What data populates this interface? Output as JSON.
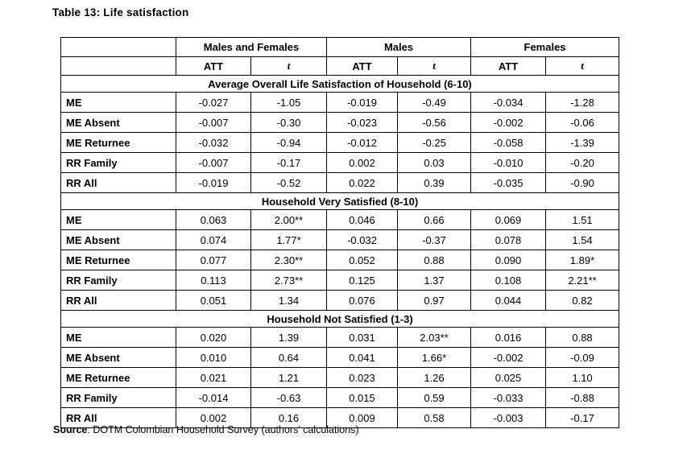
{
  "title": "Table 13: Life satisfaction",
  "source": {
    "label": "Source",
    "text": ": DOTM Colombian Household Survey (authors’ calculations)"
  },
  "table": {
    "col_groups": [
      "Males and Females",
      "Males",
      "Females"
    ],
    "sub_headers": [
      "ATT",
      "t"
    ],
    "sections": [
      {
        "header": "Average Overall Life Satisfaction of Household (6-10)",
        "rows": [
          {
            "label": "ME",
            "values": [
              "-0.027",
              "-1.05",
              "-0.019",
              "-0.49",
              "-0.034",
              "-1.28"
            ]
          },
          {
            "label": "ME Absent",
            "values": [
              "-0.007",
              "-0.30",
              "-0.023",
              "-0.56",
              "-0.002",
              "-0.06"
            ]
          },
          {
            "label": "ME Returnee",
            "values": [
              "-0.032",
              "-0.94",
              "-0.012",
              "-0.25",
              "-0.058",
              "-1.39"
            ]
          },
          {
            "label": "RR Family",
            "values": [
              "-0.007",
              "-0.17",
              "0.002",
              "0.03",
              "-0.010",
              "-0.20"
            ]
          },
          {
            "label": "RR All",
            "values": [
              "-0.019",
              "-0.52",
              "0.022",
              "0.39",
              "-0.035",
              "-0.90"
            ]
          }
        ]
      },
      {
        "header": "Household Very Satisfied (8-10)",
        "rows": [
          {
            "label": "ME",
            "values": [
              "0.063",
              "2.00**",
              "0.046",
              "0.66",
              "0.069",
              "1.51"
            ]
          },
          {
            "label": "ME Absent",
            "values": [
              "0.074",
              "1.77*",
              "-0.032",
              "-0.37",
              "0.078",
              "1.54"
            ]
          },
          {
            "label": "ME Returnee",
            "values": [
              "0.077",
              "2.30**",
              "0.052",
              "0.88",
              "0.090",
              "1.89*"
            ]
          },
          {
            "label": "RR Family",
            "values": [
              "0.113",
              "2.73**",
              "0.125",
              "1.37",
              "0.108",
              "2.21**"
            ]
          },
          {
            "label": "RR All",
            "values": [
              "0.051",
              "1.34",
              "0.076",
              "0.97",
              "0.044",
              "0.82"
            ]
          }
        ]
      },
      {
        "header": "Household Not Satisfied (1-3)",
        "rows": [
          {
            "label": "ME",
            "values": [
              "0.020",
              "1.39",
              "0.031",
              "2.03**",
              "0.016",
              "0.88"
            ]
          },
          {
            "label": "ME Absent",
            "values": [
              "0.010",
              "0.64",
              "0.041",
              "1.66*",
              "-0.002",
              "-0.09"
            ]
          },
          {
            "label": "ME Returnee",
            "values": [
              "0.021",
              "1.21",
              "0.023",
              "1.26",
              "0.025",
              "1.10"
            ]
          },
          {
            "label": "RR Family",
            "values": [
              "-0.014",
              "-0.63",
              "0.015",
              "0.59",
              "-0.033",
              "-0.88"
            ]
          },
          {
            "label": "RR All",
            "values": [
              "0.002",
              "0.16",
              "0.009",
              "0.58",
              "-0.003",
              "-0.17"
            ]
          }
        ]
      }
    ]
  }
}
